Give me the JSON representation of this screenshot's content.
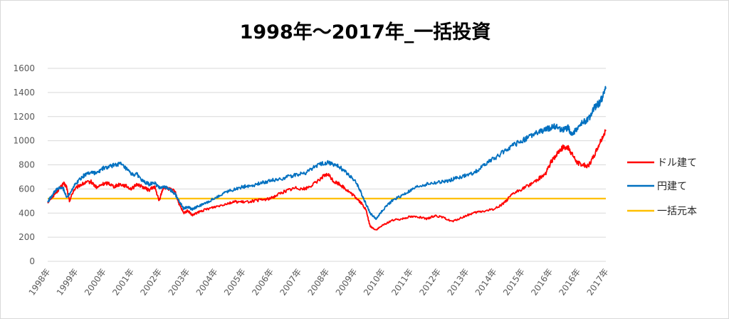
{
  "chart_data": {
    "type": "line",
    "title": "1998年～2017年_一括投資",
    "xlabel": "",
    "ylabel": "",
    "ylim": [
      0,
      1600
    ],
    "yticks": [
      "0",
      "200",
      "400",
      "600",
      "800",
      "1000",
      "1200",
      "1400",
      "1600"
    ],
    "xlim": [
      1998.0,
      2017.3
    ],
    "xticks": [
      "1998年",
      "1999年",
      "2000年",
      "2001年",
      "2002年",
      "2003年",
      "2004年",
      "2005年",
      "2006年",
      "2007年",
      "2008年",
      "2009年",
      "2010年",
      "2011年",
      "2012年",
      "2013年",
      "2014年",
      "2015年",
      "2016年",
      "2016年",
      "2017年"
    ],
    "grid": true,
    "legend": "right",
    "colors": {
      "dollar": "#ff0000",
      "yen": "#0070c0",
      "principal": "#ffc000"
    },
    "series": [
      {
        "name": "ドル建て",
        "x": [
          1998.0,
          1998.1,
          1998.25,
          1998.4,
          1998.55,
          1998.65,
          1998.75,
          1998.9,
          1999.1,
          1999.3,
          1999.5,
          1999.7,
          1999.9,
          2000.1,
          2000.3,
          2000.5,
          2000.7,
          2000.9,
          2001.1,
          2001.3,
          2001.5,
          2001.7,
          2001.85,
          2002.0,
          2002.2,
          2002.4,
          2002.55,
          2002.7,
          2002.85,
          2003.0,
          2003.15,
          2003.35,
          2003.6,
          2003.9,
          2004.2,
          2004.5,
          2004.8,
          2005.1,
          2005.4,
          2005.7,
          2006.0,
          2006.3,
          2006.6,
          2006.9,
          2007.2,
          2007.5,
          2007.7,
          2007.9,
          2008.1,
          2008.3,
          2008.5,
          2008.7,
          2008.85,
          2009.0,
          2009.15,
          2009.35,
          2009.6,
          2009.9,
          2010.2,
          2010.5,
          2010.8,
          2011.1,
          2011.4,
          2011.7,
          2012.0,
          2012.3,
          2012.6,
          2012.9,
          2013.2,
          2013.5,
          2013.8,
          2014.1,
          2014.4,
          2014.7,
          2015.0,
          2015.2,
          2015.4,
          2015.55,
          2015.7,
          2015.85,
          2016.0,
          2016.1,
          2016.3,
          2016.5,
          2016.7,
          2016.9,
          2017.1,
          2017.3
        ],
        "values": [
          490,
          520,
          560,
          600,
          645,
          620,
          500,
          590,
          630,
          650,
          660,
          610,
          640,
          650,
          620,
          640,
          625,
          600,
          640,
          615,
          590,
          620,
          500,
          615,
          600,
          580,
          470,
          400,
          420,
          380,
          400,
          420,
          440,
          460,
          480,
          495,
          490,
          500,
          510,
          520,
          560,
          590,
          610,
          600,
          640,
          700,
          720,
          660,
          640,
          600,
          560,
          520,
          480,
          430,
          290,
          260,
          300,
          340,
          350,
          370,
          370,
          350,
          380,
          360,
          330,
          360,
          390,
          410,
          420,
          440,
          490,
          560,
          600,
          640,
          690,
          720,
          820,
          870,
          920,
          950,
          940,
          900,
          820,
          800,
          790,
          880,
          990,
          1090
        ]
      },
      {
        "name": "円建て",
        "x": [
          1998.0,
          1998.1,
          1998.25,
          1998.4,
          1998.55,
          1998.65,
          1998.75,
          1998.9,
          1999.1,
          1999.3,
          1999.5,
          1999.7,
          1999.9,
          2000.1,
          2000.3,
          2000.5,
          2000.7,
          2000.9,
          2001.1,
          2001.3,
          2001.5,
          2001.7,
          2001.85,
          2002.0,
          2002.2,
          2002.4,
          2002.55,
          2002.7,
          2002.85,
          2003.0,
          2003.15,
          2003.35,
          2003.6,
          2003.9,
          2004.2,
          2004.5,
          2004.8,
          2005.1,
          2005.4,
          2005.7,
          2006.0,
          2006.3,
          2006.6,
          2006.9,
          2007.2,
          2007.5,
          2007.7,
          2007.9,
          2008.1,
          2008.3,
          2008.5,
          2008.7,
          2008.85,
          2009.0,
          2009.15,
          2009.35,
          2009.6,
          2009.9,
          2010.2,
          2010.5,
          2010.8,
          2011.1,
          2011.4,
          2011.7,
          2012.0,
          2012.3,
          2012.6,
          2012.9,
          2013.2,
          2013.5,
          2013.8,
          2014.1,
          2014.4,
          2014.7,
          2015.0,
          2015.2,
          2015.4,
          2015.55,
          2015.7,
          2015.85,
          2016.0,
          2016.1,
          2016.3,
          2016.5,
          2016.7,
          2016.9,
          2017.1,
          2017.3
        ],
        "values": [
          490,
          530,
          580,
          610,
          600,
          530,
          560,
          620,
          680,
          720,
          740,
          730,
          770,
          780,
          800,
          810,
          770,
          720,
          720,
          660,
          640,
          650,
          610,
          620,
          600,
          560,
          500,
          440,
          450,
          430,
          450,
          470,
          500,
          540,
          580,
          600,
          620,
          630,
          650,
          670,
          680,
          700,
          720,
          730,
          780,
          810,
          820,
          800,
          780,
          740,
          700,
          640,
          560,
          480,
          400,
          350,
          430,
          500,
          540,
          580,
          620,
          640,
          650,
          660,
          680,
          700,
          720,
          760,
          820,
          860,
          920,
          960,
          1000,
          1040,
          1070,
          1090,
          1110,
          1120,
          1100,
          1090,
          1110,
          1050,
          1100,
          1150,
          1180,
          1270,
          1320,
          1430
        ]
      },
      {
        "name": "一括元本",
        "x": [
          1998.0,
          2017.3
        ],
        "values": [
          520,
          520
        ]
      }
    ]
  }
}
